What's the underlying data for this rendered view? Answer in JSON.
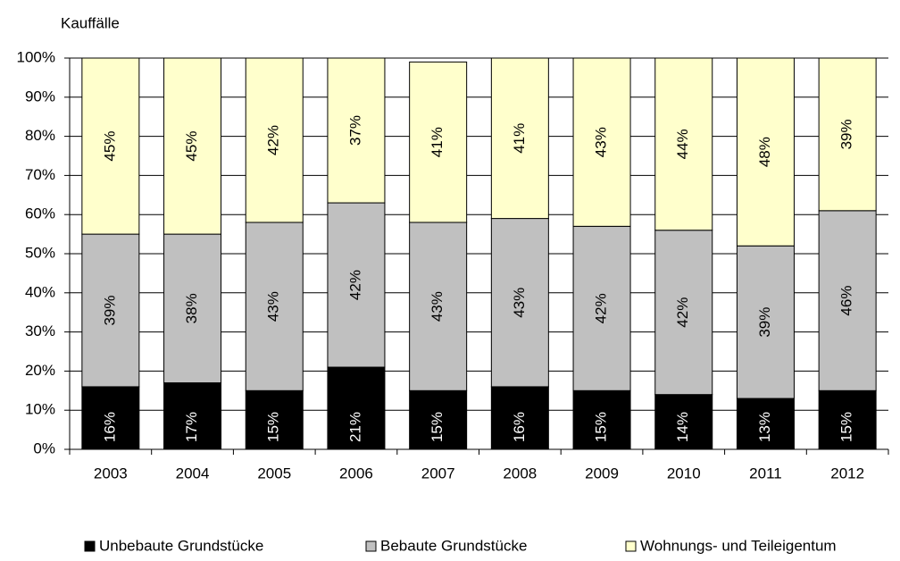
{
  "chart_data": {
    "type": "stacked_bar",
    "y_axis_label": "Kauffälle",
    "categories": [
      "2003",
      "2004",
      "2005",
      "2006",
      "2007",
      "2008",
      "2009",
      "2010",
      "2011",
      "2012"
    ],
    "series": [
      {
        "name": "Unbebaute Grundstücke",
        "color": "#000000",
        "values": [
          16,
          17,
          15,
          21,
          15,
          16,
          15,
          14,
          13,
          15
        ],
        "value_labels": [
          "16%",
          "17%",
          "15%",
          "21%",
          "15%",
          "16%",
          "15%",
          "14%",
          "13%",
          "15%"
        ]
      },
      {
        "name": "Bebaute Grundstücke",
        "color": "#c0c0c0",
        "values": [
          39,
          38,
          43,
          42,
          43,
          43,
          42,
          42,
          39,
          46
        ],
        "value_labels": [
          "39%",
          "38%",
          "43%",
          "42%",
          "43%",
          "43%",
          "42%",
          "42%",
          "39%",
          "46%"
        ]
      },
      {
        "name": "Wohnungs- und Teileigentum",
        "color": "#ffffcc",
        "values": [
          45,
          45,
          42,
          37,
          41,
          41,
          43,
          44,
          48,
          39
        ],
        "value_labels": [
          "45%",
          "45%",
          "42%",
          "37%",
          "41%",
          "41%",
          "43%",
          "44%",
          "48%",
          "39%"
        ]
      }
    ],
    "ylim": [
      0,
      100
    ],
    "yticks": [
      {
        "value": 0,
        "label": "0%"
      },
      {
        "value": 10,
        "label": "10%"
      },
      {
        "value": 20,
        "label": "20%"
      },
      {
        "value": 30,
        "label": "30%"
      },
      {
        "value": 40,
        "label": "40%"
      },
      {
        "value": 50,
        "label": "50%"
      },
      {
        "value": 60,
        "label": "60%"
      },
      {
        "value": 70,
        "label": "70%"
      },
      {
        "value": 80,
        "label": "80%"
      },
      {
        "value": 90,
        "label": "90%"
      },
      {
        "value": 100,
        "label": "100%"
      }
    ],
    "grid": true,
    "legend": "bottom"
  }
}
